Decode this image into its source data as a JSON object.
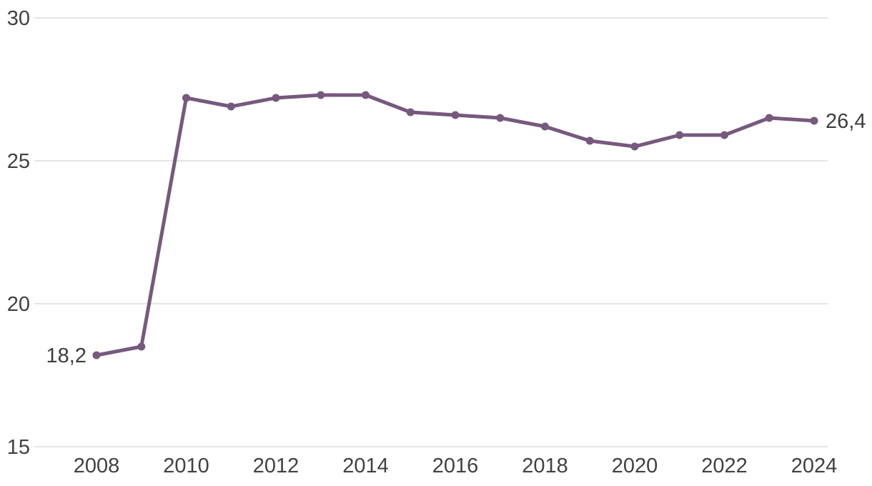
{
  "chart_data": {
    "type": "line",
    "title": "",
    "xlabel": "",
    "ylabel": "",
    "x": [
      2008,
      2009,
      2010,
      2011,
      2012,
      2013,
      2014,
      2015,
      2016,
      2017,
      2018,
      2019,
      2020,
      2021,
      2022,
      2023,
      2024
    ],
    "series": [
      {
        "name": "value",
        "values": [
          18.2,
          18.5,
          27.2,
          26.9,
          27.2,
          27.3,
          27.3,
          26.7,
          26.6,
          26.5,
          26.2,
          25.7,
          25.5,
          25.9,
          25.9,
          26.5,
          26.4
        ]
      }
    ],
    "xlim": [
      2008,
      2024
    ],
    "ylim": [
      15,
      30
    ],
    "x_ticks": [
      2008,
      2010,
      2012,
      2014,
      2016,
      2018,
      2020,
      2022,
      2024
    ],
    "x_tick_labels": [
      "2008",
      "2010",
      "2012",
      "2014",
      "2016",
      "2018",
      "2020",
      "2022",
      "2024"
    ],
    "y_ticks": [
      30,
      25,
      20,
      15
    ],
    "y_tick_labels": [
      "30",
      "25",
      "20",
      "15"
    ],
    "grid": "horizontal",
    "legend_position": "none",
    "point_labels": {
      "first": "18,2",
      "last": "26,4"
    },
    "colors": {
      "line": "#76597D",
      "marker": "#76597D",
      "gridline": "#e5e5e5",
      "tick_text": "#414141",
      "point_label_text": "#3d3d3d",
      "background": "#ffffff"
    }
  }
}
